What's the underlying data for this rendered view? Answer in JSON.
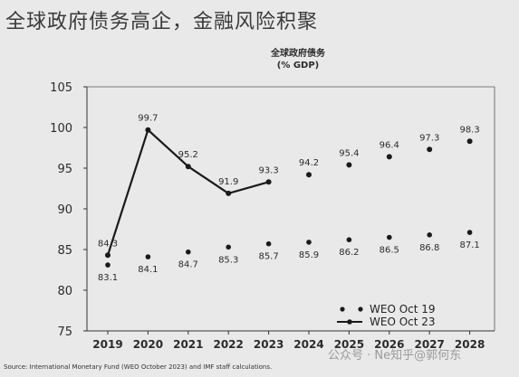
{
  "header": {
    "title": "全球政府债务高企，金融风险积聚"
  },
  "chart_data": {
    "type": "line",
    "title": "全球政府债务\n(% GDP)",
    "xlabel": "",
    "ylabel": "",
    "categories": [
      "2019",
      "2020",
      "2021",
      "2022",
      "2023",
      "2024",
      "2025",
      "2026",
      "2027",
      "2028"
    ],
    "yticks": [
      75,
      80,
      85,
      90,
      95,
      100,
      105
    ],
    "ylim": [
      75,
      105
    ],
    "grid": false,
    "legend_placement": "bottom-right",
    "series": [
      {
        "name": "WEO Oct 19",
        "style": "dots",
        "color": "#1a1a1a",
        "values": [
          83.1,
          84.1,
          84.7,
          85.3,
          85.7,
          85.9,
          86.2,
          86.5,
          86.8,
          87.1
        ],
        "labels": [
          "83.1",
          "84.1",
          "84.7",
          "85.3",
          "85.7",
          "85.9",
          "86.2",
          "86.5",
          "86.8",
          "87.1"
        ]
      },
      {
        "name": "WEO Oct 23",
        "style": "line-then-dots",
        "solid_until_index": 4,
        "color": "#1a1a1a",
        "values": [
          84.3,
          99.7,
          95.2,
          91.9,
          93.3,
          94.2,
          95.4,
          96.4,
          97.3,
          98.3
        ],
        "labels": [
          "84.3",
          "99.7",
          "95.2",
          "91.9",
          "93.3",
          "94.2",
          "95.4",
          "96.4",
          "97.3",
          "98.3"
        ]
      }
    ]
  },
  "footer": {
    "source": "Source: International Monetary Fund (WEO October 2023) and IMF staff calculations.",
    "watermark": "公众号 · Ne知乎@郭何东"
  },
  "colors": {
    "background": "#e9e9e9",
    "ink": "#1a1a1a"
  }
}
